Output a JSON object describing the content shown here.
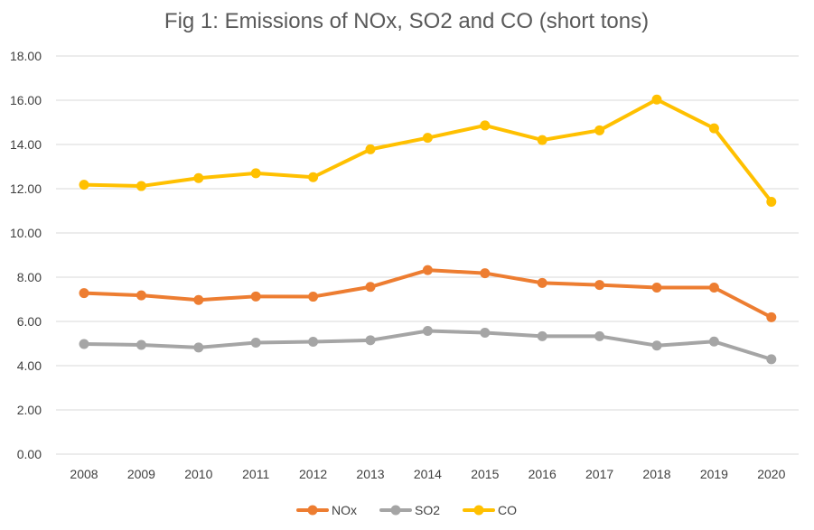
{
  "chart_data": {
    "type": "line",
    "title": "Fig 1: Emissions of NOx, SO2 and CO (short tons)",
    "xlabel": "",
    "ylabel": "",
    "categories": [
      "2008",
      "2009",
      "2010",
      "2011",
      "2012",
      "2013",
      "2014",
      "2015",
      "2016",
      "2017",
      "2018",
      "2019",
      "2020"
    ],
    "ylim": [
      0,
      18
    ],
    "yticks": [
      0,
      2,
      4,
      6,
      8,
      10,
      12,
      14,
      16,
      18
    ],
    "ytick_labels": [
      "0.00",
      "2.00",
      "4.00",
      "6.00",
      "8.00",
      "10.00",
      "12.00",
      "14.00",
      "16.00",
      "18.00"
    ],
    "grid": true,
    "legend_position": "bottom",
    "series": [
      {
        "name": "NOx",
        "color": "#ED7D31",
        "values": [
          7.28,
          7.18,
          6.97,
          7.13,
          7.12,
          7.56,
          8.32,
          8.18,
          7.74,
          7.65,
          7.53,
          7.53,
          6.19
        ]
      },
      {
        "name": "SO2",
        "color": "#A5A5A5",
        "values": [
          4.98,
          4.94,
          4.82,
          5.04,
          5.08,
          5.15,
          5.57,
          5.49,
          5.33,
          5.33,
          4.91,
          5.09,
          4.29
        ]
      },
      {
        "name": "CO",
        "color": "#FFC000",
        "values": [
          12.18,
          12.12,
          12.48,
          12.7,
          12.52,
          13.78,
          14.3,
          14.86,
          14.2,
          14.64,
          16.03,
          14.73,
          11.41
        ]
      }
    ]
  }
}
